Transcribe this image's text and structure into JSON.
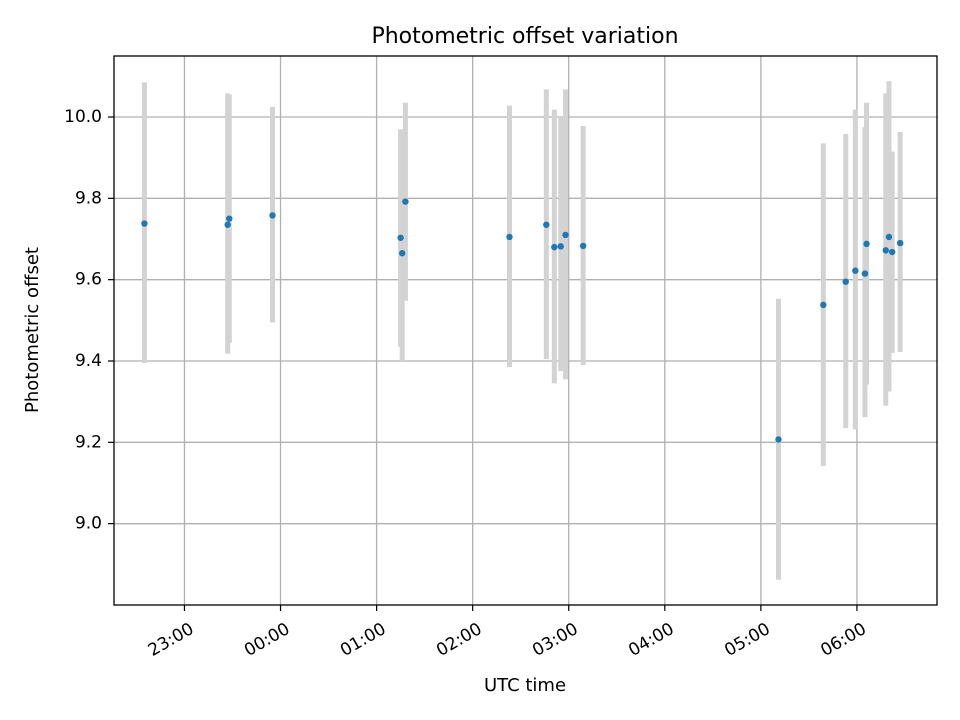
{
  "chart_data": {
    "type": "scatter",
    "title": "Photometric offset variation",
    "xlabel": "UTC time",
    "ylabel": "Photometric offset",
    "xlim": [
      "22:16",
      "06:50"
    ],
    "ylim": [
      8.8,
      10.15
    ],
    "x_ticks": [
      "23:00",
      "00:00",
      "01:00",
      "02:00",
      "03:00",
      "04:00",
      "05:00",
      "06:00"
    ],
    "y_ticks": [
      "9.0",
      "9.2",
      "9.4",
      "9.6",
      "9.8",
      "10.0"
    ],
    "grid": true,
    "colors": {
      "points": "#1f77b4",
      "error_bars": "#d3d3d3"
    },
    "points": [
      {
        "x": "22:35",
        "y": 9.738,
        "ylow": 9.395,
        "yhigh": 10.085
      },
      {
        "x": "23:27",
        "y": 9.735,
        "ylow": 9.418,
        "yhigh": 10.058
      },
      {
        "x": "23:28",
        "y": 9.75,
        "ylow": 9.445,
        "yhigh": 10.055
      },
      {
        "x": "23:55",
        "y": 9.758,
        "ylow": 9.495,
        "yhigh": 10.025
      },
      {
        "x": "01:15",
        "y": 9.703,
        "ylow": 9.435,
        "yhigh": 9.97
      },
      {
        "x": "01:16",
        "y": 9.665,
        "ylow": 9.4,
        "yhigh": 9.96
      },
      {
        "x": "01:18",
        "y": 9.792,
        "ylow": 9.548,
        "yhigh": 10.035
      },
      {
        "x": "02:23",
        "y": 9.705,
        "ylow": 9.385,
        "yhigh": 10.028
      },
      {
        "x": "02:46",
        "y": 9.735,
        "ylow": 9.405,
        "yhigh": 10.068
      },
      {
        "x": "02:51",
        "y": 9.68,
        "ylow": 9.345,
        "yhigh": 10.018
      },
      {
        "x": "02:55",
        "y": 9.682,
        "ylow": 9.375,
        "yhigh": 10.0
      },
      {
        "x": "02:58",
        "y": 9.71,
        "ylow": 9.355,
        "yhigh": 10.068
      },
      {
        "x": "03:09",
        "y": 9.683,
        "ylow": 9.39,
        "yhigh": 9.978
      },
      {
        "x": "05:11",
        "y": 9.207,
        "ylow": 8.862,
        "yhigh": 9.553
      },
      {
        "x": "05:39",
        "y": 9.538,
        "ylow": 9.142,
        "yhigh": 9.935
      },
      {
        "x": "05:53",
        "y": 9.595,
        "ylow": 9.235,
        "yhigh": 9.958
      },
      {
        "x": "05:59",
        "y": 9.622,
        "ylow": 9.232,
        "yhigh": 10.018
      },
      {
        "x": "06:05",
        "y": 9.615,
        "ylow": 9.262,
        "yhigh": 9.975
      },
      {
        "x": "06:06",
        "y": 9.688,
        "ylow": 9.342,
        "yhigh": 10.035
      },
      {
        "x": "06:18",
        "y": 9.672,
        "ylow": 9.29,
        "yhigh": 10.058
      },
      {
        "x": "06:20",
        "y": 9.705,
        "ylow": 9.325,
        "yhigh": 10.088
      },
      {
        "x": "06:22",
        "y": 9.668,
        "ylow": 9.42,
        "yhigh": 9.915
      },
      {
        "x": "06:27",
        "y": 9.69,
        "ylow": 9.422,
        "yhigh": 9.963
      }
    ]
  }
}
